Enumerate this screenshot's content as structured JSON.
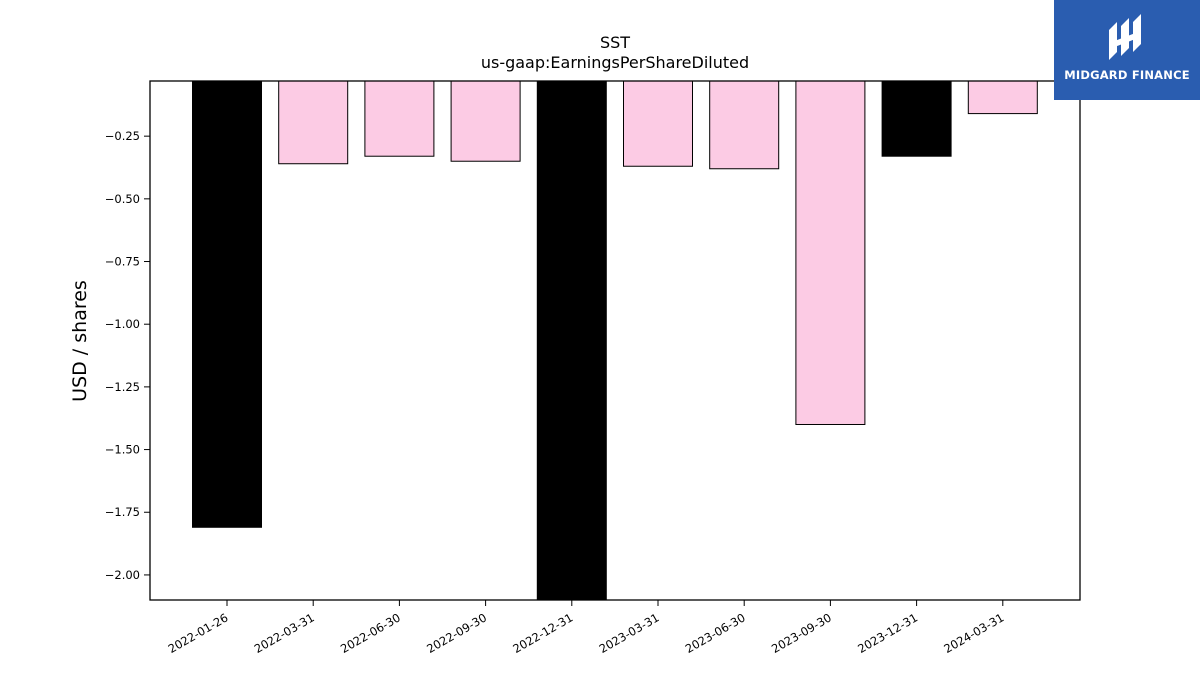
{
  "chart_data": {
    "type": "bar",
    "title": "SST",
    "subtitle": "us-gaap:EarningsPerShareDiluted",
    "ylabel": "USD / shares",
    "xlabel": "",
    "categories": [
      "2022-01-26",
      "2022-03-31",
      "2022-06-30",
      "2022-09-30",
      "2022-12-31",
      "2023-03-31",
      "2023-06-30",
      "2023-09-30",
      "2023-12-31",
      "2024-03-31"
    ],
    "values": [
      -1.81,
      -0.36,
      -0.33,
      -0.35,
      -2.1,
      -0.37,
      -0.38,
      -1.4,
      -0.33,
      -0.16
    ],
    "bar_colors": [
      "#000000",
      "#fccbe4",
      "#fccbe4",
      "#fccbe4",
      "#000000",
      "#fccbe4",
      "#fccbe4",
      "#fccbe4",
      "#000000",
      "#fccbe4"
    ],
    "ylim": [
      -2.1,
      -0.03
    ],
    "yticks": [
      -0.25,
      -0.5,
      -0.75,
      -1.0,
      -1.25,
      -1.5,
      -1.75,
      -2.0
    ],
    "ytick_labels": [
      "−0.25",
      "−0.50",
      "−0.75",
      "−1.00",
      "−1.25",
      "−1.50",
      "−1.75",
      "−2.00"
    ],
    "grid": false,
    "legend": "none"
  },
  "logo": {
    "text": "MIDGARD FINANCE",
    "color": "#2a5db0"
  }
}
